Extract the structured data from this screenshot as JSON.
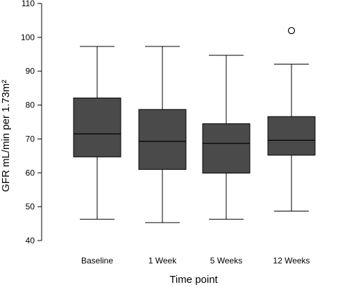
{
  "chart_data": {
    "type": "box",
    "title": "",
    "xlabel": "Time point",
    "ylabel": "GFR mL/min per 1.73m²",
    "ylim": [
      40,
      110
    ],
    "yticks": [
      40,
      50,
      60,
      70,
      80,
      90,
      100,
      110
    ],
    "grid": false,
    "box_color": "#4a4a4a",
    "categories": [
      "Baseline",
      "1 Week",
      "5 Weeks",
      "12 Weeks"
    ],
    "boxes": [
      {
        "category": "Baseline",
        "whisker_low": 46.3,
        "q1": 64.7,
        "median": 71.5,
        "q3": 82.1,
        "whisker_high": 97.3,
        "outliers": []
      },
      {
        "category": "1 Week",
        "whisker_low": 45.3,
        "q1": 61.0,
        "median": 69.3,
        "q3": 78.7,
        "whisker_high": 97.3,
        "outliers": []
      },
      {
        "category": "5 Weeks",
        "whisker_low": 46.3,
        "q1": 59.9,
        "median": 68.7,
        "q3": 74.5,
        "whisker_high": 94.7,
        "outliers": []
      },
      {
        "category": "12 Weeks",
        "whisker_low": 48.7,
        "q1": 65.2,
        "median": 69.6,
        "q3": 76.6,
        "whisker_high": 92.1,
        "outliers": [
          102.0
        ]
      }
    ]
  }
}
